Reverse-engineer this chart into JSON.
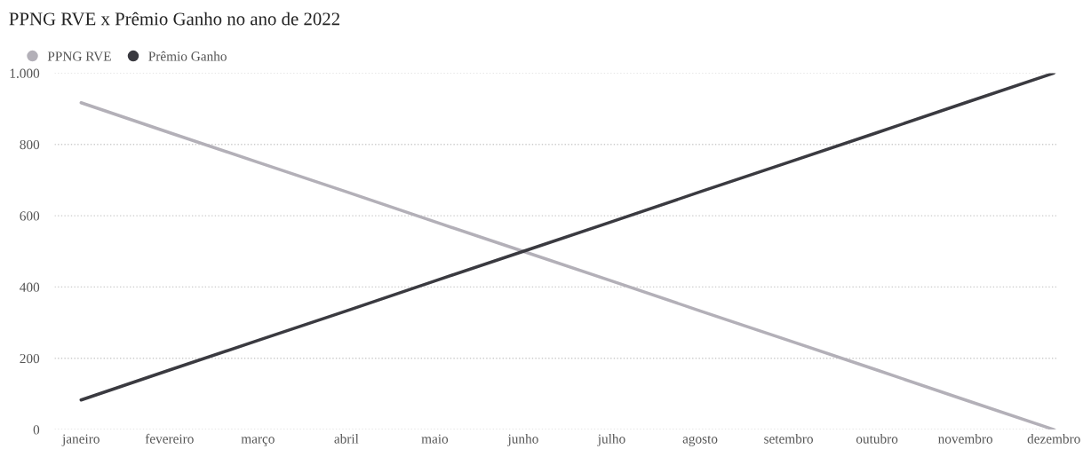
{
  "chart_data": {
    "type": "line",
    "title": "PPNG RVE x Prêmio Ganho no ano de 2022",
    "categories": [
      "janeiro",
      "fevereiro",
      "março",
      "abril",
      "maio",
      "junho",
      "julho",
      "agosto",
      "setembro",
      "outubro",
      "novembro",
      "dezembro"
    ],
    "series": [
      {
        "name": "PPNG RVE",
        "color": "#b3b0b8",
        "values": [
          917,
          833,
          750,
          667,
          583,
          500,
          417,
          333,
          250,
          167,
          83,
          0
        ]
      },
      {
        "name": "Prêmio Ganho",
        "color": "#3a3a40",
        "values": [
          83,
          167,
          250,
          333,
          417,
          500,
          583,
          667,
          750,
          833,
          917,
          1000
        ]
      }
    ],
    "ylim": [
      0,
      1000
    ],
    "yticks": [
      0,
      200,
      400,
      600,
      800,
      {
        "value": 1000,
        "label": "1.000"
      }
    ],
    "grid": "y",
    "legend": "top left",
    "marker": "none",
    "line_style": "solid"
  }
}
